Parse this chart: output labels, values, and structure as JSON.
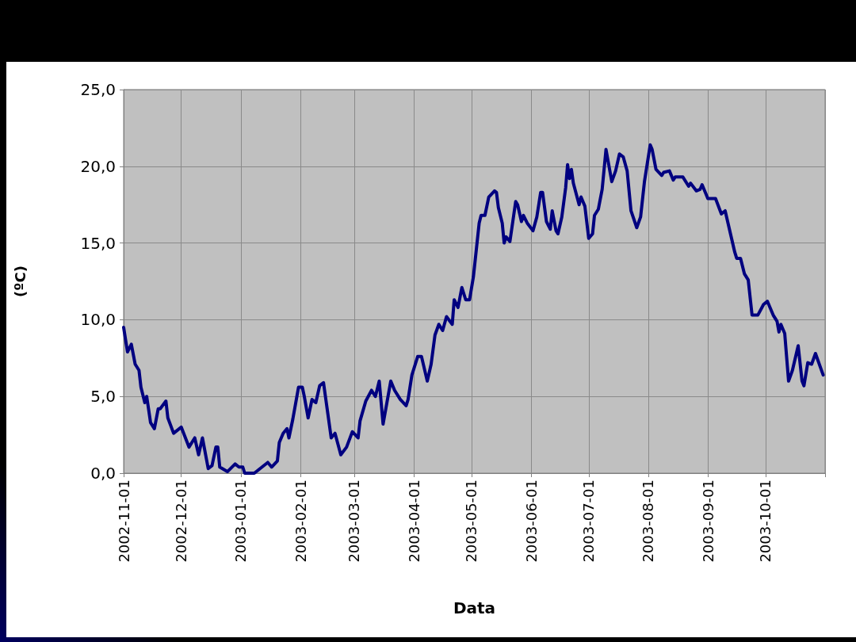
{
  "chart_data": {
    "type": "line",
    "xlabel": "Data",
    "ylabel": "(ºC)",
    "x": [
      "2002-11-01",
      "2002-11-03",
      "2002-11-05",
      "2002-11-07",
      "2002-11-09",
      "2002-11-10",
      "2002-11-12",
      "2002-11-13",
      "2002-11-15",
      "2002-11-17",
      "2002-11-19",
      "2002-11-20",
      "2002-11-23",
      "2002-11-24",
      "2002-11-27",
      "2002-12-01",
      "2002-12-05",
      "2002-12-08",
      "2002-12-10",
      "2002-12-12",
      "2002-12-15",
      "2002-12-17",
      "2002-12-19",
      "2002-12-20",
      "2002-12-21",
      "2002-12-25",
      "2002-12-29",
      "2002-12-31",
      "2003-01-02",
      "2003-01-03",
      "2003-01-08",
      "2003-01-12",
      "2003-01-15",
      "2003-01-17",
      "2003-01-20",
      "2003-01-21",
      "2003-01-23",
      "2003-01-25",
      "2003-01-26",
      "2003-01-28",
      "2003-01-31",
      "2003-02-02",
      "2003-02-03",
      "2003-02-05",
      "2003-02-07",
      "2003-02-09",
      "2003-02-11",
      "2003-02-13",
      "2003-02-15",
      "2003-02-17",
      "2003-02-19",
      "2003-02-22",
      "2003-02-25",
      "2003-02-28",
      "2003-03-03",
      "2003-03-04",
      "2003-03-07",
      "2003-03-10",
      "2003-03-12",
      "2003-03-14",
      "2003-03-16",
      "2003-03-18",
      "2003-03-20",
      "2003-03-22",
      "2003-03-25",
      "2003-03-28",
      "2003-03-29",
      "2003-03-31",
      "2003-04-03",
      "2003-04-05",
      "2003-04-08",
      "2003-04-10",
      "2003-04-12",
      "2003-04-14",
      "2003-04-16",
      "2003-04-18",
      "2003-04-21",
      "2003-04-22",
      "2003-04-24",
      "2003-04-26",
      "2003-04-28",
      "2003-04-30",
      "2003-05-02",
      "2003-05-05",
      "2003-05-06",
      "2003-05-08",
      "2003-05-10",
      "2003-05-13",
      "2003-05-14",
      "2003-05-15",
      "2003-05-17",
      "2003-05-18",
      "2003-05-19",
      "2003-05-21",
      "2003-05-24",
      "2003-05-25",
      "2003-05-27",
      "2003-05-28",
      "2003-05-30",
      "2003-06-02",
      "2003-06-04",
      "2003-06-06",
      "2003-06-07",
      "2003-06-09",
      "2003-06-11",
      "2003-06-12",
      "2003-06-14",
      "2003-06-15",
      "2003-06-17",
      "2003-06-19",
      "2003-06-20",
      "2003-06-21",
      "2003-06-22",
      "2003-06-23",
      "2003-06-26",
      "2003-06-27",
      "2003-06-29",
      "2003-07-01",
      "2003-07-03",
      "2003-07-04",
      "2003-07-06",
      "2003-07-08",
      "2003-07-10",
      "2003-07-13",
      "2003-07-15",
      "2003-07-17",
      "2003-07-19",
      "2003-07-21",
      "2003-07-23",
      "2003-07-26",
      "2003-07-28",
      "2003-07-30",
      "2003-08-02",
      "2003-08-03",
      "2003-08-05",
      "2003-08-08",
      "2003-08-09",
      "2003-08-12",
      "2003-08-14",
      "2003-08-15",
      "2003-08-19",
      "2003-08-22",
      "2003-08-23",
      "2003-08-26",
      "2003-08-28",
      "2003-08-29",
      "2003-09-01",
      "2003-09-05",
      "2003-09-08",
      "2003-09-10",
      "2003-09-15",
      "2003-09-16",
      "2003-09-18",
      "2003-09-20",
      "2003-09-22",
      "2003-09-24",
      "2003-09-27",
      "2003-09-30",
      "2003-10-02",
      "2003-10-05",
      "2003-10-07",
      "2003-10-08",
      "2003-10-09",
      "2003-10-11",
      "2003-10-13",
      "2003-10-15",
      "2003-10-18",
      "2003-10-20",
      "2003-10-21",
      "2003-10-23",
      "2003-10-25",
      "2003-10-27",
      "2003-10-31"
    ],
    "series": [
      {
        "color": "#000080",
        "values": [
          9.5,
          7.9,
          8.4,
          7.1,
          6.7,
          5.6,
          4.6,
          5.0,
          3.3,
          2.9,
          4.2,
          4.2,
          4.7,
          3.6,
          2.6,
          3.0,
          1.7,
          2.3,
          1.2,
          2.3,
          0.3,
          0.5,
          1.7,
          1.7,
          0.4,
          0.1,
          0.6,
          0.4,
          0.4,
          0.0,
          0.0,
          0.4,
          0.7,
          0.4,
          0.8,
          2.0,
          2.6,
          2.9,
          2.3,
          3.5,
          5.6,
          5.6,
          5.0,
          3.6,
          4.8,
          4.6,
          5.7,
          5.9,
          4.1,
          2.3,
          2.6,
          1.2,
          1.7,
          2.7,
          2.3,
          3.4,
          4.7,
          5.4,
          5.0,
          6.0,
          3.2,
          4.6,
          6.0,
          5.4,
          4.8,
          4.4,
          4.8,
          6.4,
          7.6,
          7.6,
          6.0,
          7.1,
          9.0,
          9.7,
          9.3,
          10.2,
          9.7,
          11.3,
          10.8,
          12.1,
          11.3,
          11.3,
          12.8,
          16.3,
          16.8,
          16.8,
          18.0,
          18.4,
          18.3,
          17.3,
          16.3,
          15.0,
          15.4,
          15.1,
          17.7,
          17.5,
          16.4,
          16.8,
          16.3,
          15.8,
          16.7,
          18.3,
          18.3,
          16.4,
          15.9,
          17.1,
          15.8,
          15.6,
          16.7,
          18.6,
          20.1,
          19.2,
          19.8,
          18.9,
          17.5,
          18.0,
          17.4,
          15.3,
          15.6,
          16.8,
          17.2,
          18.5,
          21.1,
          19.0,
          19.7,
          20.8,
          20.6,
          19.7,
          17.1,
          16.0,
          16.7,
          19.0,
          21.4,
          21.1,
          19.8,
          19.4,
          19.6,
          19.7,
          19.1,
          19.3,
          19.3,
          18.7,
          18.9,
          18.4,
          18.5,
          18.8,
          17.9,
          17.9,
          16.9,
          17.1,
          14.4,
          14.0,
          14.0,
          13.0,
          12.6,
          10.3,
          10.3,
          11.0,
          11.2,
          10.3,
          9.9,
          9.2,
          9.7,
          9.1,
          6.0,
          6.7,
          8.3,
          6.0,
          5.7,
          7.2,
          7.1,
          7.8,
          6.4
        ]
      }
    ],
    "xlim": [
      "2002-11-01",
      "2003-11-01"
    ],
    "xticks": [
      "2002-11-01",
      "2002-12-01",
      "2003-01-01",
      "2003-02-01",
      "2003-03-01",
      "2003-04-01",
      "2003-05-01",
      "2003-06-01",
      "2003-07-01",
      "2003-08-01",
      "2003-09-01",
      "2003-10-01",
      {
        "value": "2003-11-01",
        "label": null
      }
    ],
    "ylim": [
      0,
      25
    ],
    "yticks": [
      {
        "value": 0,
        "label": "0,0"
      },
      {
        "value": 5,
        "label": "5,0"
      },
      {
        "value": 10,
        "label": "10,0"
      },
      {
        "value": 15,
        "label": "15,0"
      },
      {
        "value": 20,
        "label": "20,0"
      },
      {
        "value": 25,
        "label": "25,0"
      }
    ],
    "grid": true,
    "marker": "none",
    "line_style": "solid"
  }
}
